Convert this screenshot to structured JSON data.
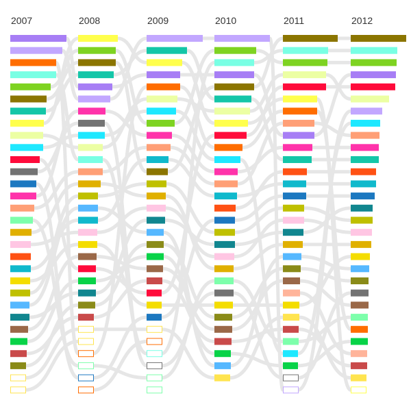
{
  "chart_data": {
    "type": "bar",
    "title": "",
    "xlabel": "",
    "ylabel": "",
    "grid": false,
    "legend": "none",
    "bump_connectors": true,
    "connector_color": "#e6e6e6",
    "years": [
      "2007",
      "2008",
      "2009",
      "2010",
      "2011",
      "2012"
    ],
    "series": [
      {
        "year": "2007",
        "bars": [
          {
            "value": 82,
            "color": "#a77ef5"
          },
          {
            "value": 76,
            "color": "#c2a7ff"
          },
          {
            "value": 67,
            "color": "#ff6d00"
          },
          {
            "value": 67,
            "color": "#79ffe4"
          },
          {
            "value": 59,
            "color": "#7ed321"
          },
          {
            "value": 53,
            "color": "#8b7500"
          },
          {
            "value": 52,
            "color": "#14c6a8"
          },
          {
            "value": 49,
            "color": "#ffff4c"
          },
          {
            "value": 48,
            "color": "#ecffa3"
          },
          {
            "value": 48,
            "color": "#1ee8ff"
          },
          {
            "value": 43,
            "color": "#ff0b3b"
          },
          {
            "value": 40,
            "color": "#737373"
          },
          {
            "value": 38,
            "color": "#1c78c0"
          },
          {
            "value": 38,
            "color": "#ff33aa"
          },
          {
            "value": 35,
            "color": "#ff9f76"
          },
          {
            "value": 33,
            "color": "#7dffab"
          },
          {
            "value": 31,
            "color": "#e0b000"
          },
          {
            "value": 30,
            "color": "#ffc6e3"
          },
          {
            "value": 30,
            "color": "#ff5114"
          },
          {
            "value": 30,
            "color": "#10b9cc"
          },
          {
            "value": 29,
            "color": "#f4dd00"
          },
          {
            "value": 29,
            "color": "#bfc000"
          },
          {
            "value": 28,
            "color": "#56b8ff"
          },
          {
            "value": 28,
            "color": "#11868f"
          },
          {
            "value": 26,
            "color": "#9a6848"
          },
          {
            "value": 25,
            "color": "#08d348"
          },
          {
            "value": 24,
            "color": "#c94a4a"
          },
          {
            "value": 23,
            "color": "#8a8b18"
          },
          {
            "value": 0,
            "color": "#ffe44f"
          },
          {
            "value": 0,
            "color": "#ffe44f"
          }
        ]
      },
      {
        "year": "2008",
        "bars": [
          {
            "value": 58,
            "color": "#ffff4c"
          },
          {
            "value": 55,
            "color": "#7ed321"
          },
          {
            "value": 55,
            "color": "#8b7500"
          },
          {
            "value": 52,
            "color": "#14c6a8"
          },
          {
            "value": 50,
            "color": "#a77ef5"
          },
          {
            "value": 47,
            "color": "#c2a7ff"
          },
          {
            "value": 40,
            "color": "#ff33aa"
          },
          {
            "value": 39,
            "color": "#737373"
          },
          {
            "value": 39,
            "color": "#1ee8ff"
          },
          {
            "value": 36,
            "color": "#ecffa3"
          },
          {
            "value": 36,
            "color": "#79ffe4"
          },
          {
            "value": 36,
            "color": "#ff9f76"
          },
          {
            "value": 33,
            "color": "#e0b000"
          },
          {
            "value": 29,
            "color": "#bfc000"
          },
          {
            "value": 29,
            "color": "#56b8ff"
          },
          {
            "value": 29,
            "color": "#10b9cc"
          },
          {
            "value": 28,
            "color": "#ffc6e3"
          },
          {
            "value": 28,
            "color": "#f4dd00"
          },
          {
            "value": 27,
            "color": "#9a6848"
          },
          {
            "value": 26,
            "color": "#ff0b3b"
          },
          {
            "value": 26,
            "color": "#08d348"
          },
          {
            "value": 26,
            "color": "#11868f"
          },
          {
            "value": 25,
            "color": "#8a8b18"
          },
          {
            "value": 23,
            "color": "#c94a4a"
          },
          {
            "value": 0,
            "color": "#ffe44f"
          },
          {
            "value": 0,
            "color": "#ffe44f"
          },
          {
            "value": 0,
            "color": "#ff6d00"
          },
          {
            "value": 0,
            "color": "#7dffab"
          },
          {
            "value": 0,
            "color": "#1c78c0"
          },
          {
            "value": 0,
            "color": "#ff6d00"
          }
        ]
      },
      {
        "year": "2009",
        "bars": [
          {
            "value": 96,
            "color": "#c2a7ff"
          },
          {
            "value": 59,
            "color": "#14c6a8"
          },
          {
            "value": 52,
            "color": "#ffff4c"
          },
          {
            "value": 49,
            "color": "#a77ef5"
          },
          {
            "value": 49,
            "color": "#ff6d00"
          },
          {
            "value": 45,
            "color": "#ecffa3"
          },
          {
            "value": 43,
            "color": "#1ee8ff"
          },
          {
            "value": 41,
            "color": "#7ed321"
          },
          {
            "value": 37,
            "color": "#ff33aa"
          },
          {
            "value": 35,
            "color": "#ff9f76"
          },
          {
            "value": 32,
            "color": "#10b9cc"
          },
          {
            "value": 31,
            "color": "#8b7500"
          },
          {
            "value": 29,
            "color": "#bfc000"
          },
          {
            "value": 28,
            "color": "#e0b000"
          },
          {
            "value": 28,
            "color": "#ffc6e3"
          },
          {
            "value": 27,
            "color": "#11868f"
          },
          {
            "value": 25,
            "color": "#56b8ff"
          },
          {
            "value": 25,
            "color": "#8a8b18"
          },
          {
            "value": 25,
            "color": "#08d348"
          },
          {
            "value": 24,
            "color": "#9a6848"
          },
          {
            "value": 23,
            "color": "#c94a4a"
          },
          {
            "value": 22,
            "color": "#ff0b3b"
          },
          {
            "value": 22,
            "color": "#f4dd00"
          },
          {
            "value": 22,
            "color": "#1c78c0"
          },
          {
            "value": 0,
            "color": "#ffe44f"
          },
          {
            "value": 0,
            "color": "#ff6d00"
          },
          {
            "value": 0,
            "color": "#79ffe4"
          },
          {
            "value": 0,
            "color": "#737373"
          },
          {
            "value": 0,
            "color": "#7dffab"
          },
          {
            "value": 0,
            "color": "#7dffab"
          }
        ]
      },
      {
        "year": "2010",
        "bars": [
          {
            "value": 81,
            "color": "#c2a7ff"
          },
          {
            "value": 61,
            "color": "#7ed321"
          },
          {
            "value": 58,
            "color": "#79ffe4"
          },
          {
            "value": 58,
            "color": "#a77ef5"
          },
          {
            "value": 58,
            "color": "#8b7500"
          },
          {
            "value": 54,
            "color": "#14c6a8"
          },
          {
            "value": 52,
            "color": "#ecffa3"
          },
          {
            "value": 49,
            "color": "#ffff4c"
          },
          {
            "value": 47,
            "color": "#ff0b3b"
          },
          {
            "value": 41,
            "color": "#ff6d00"
          },
          {
            "value": 38,
            "color": "#1ee8ff"
          },
          {
            "value": 34,
            "color": "#ff33aa"
          },
          {
            "value": 34,
            "color": "#ff9f76"
          },
          {
            "value": 33,
            "color": "#10b9cc"
          },
          {
            "value": 31,
            "color": "#ff5114"
          },
          {
            "value": 30,
            "color": "#1c78c0"
          },
          {
            "value": 30,
            "color": "#bfc000"
          },
          {
            "value": 30,
            "color": "#11868f"
          },
          {
            "value": 29,
            "color": "#ffc6e3"
          },
          {
            "value": 28,
            "color": "#e0b000"
          },
          {
            "value": 28,
            "color": "#7dffab"
          },
          {
            "value": 28,
            "color": "#737373"
          },
          {
            "value": 27,
            "color": "#f4dd00"
          },
          {
            "value": 26,
            "color": "#8a8b18"
          },
          {
            "value": 26,
            "color": "#9a6848"
          },
          {
            "value": 25,
            "color": "#c94a4a"
          },
          {
            "value": 24,
            "color": "#08d348"
          },
          {
            "value": 24,
            "color": "#56b8ff"
          },
          {
            "value": 23,
            "color": "#ffe44f"
          }
        ]
      },
      {
        "year": "2011",
        "bars": [
          {
            "value": 80,
            "color": "#8b7500"
          },
          {
            "value": 66,
            "color": "#79ffe4"
          },
          {
            "value": 65,
            "color": "#7ed321"
          },
          {
            "value": 63,
            "color": "#ecffa3"
          },
          {
            "value": 63,
            "color": "#ff0b3b"
          },
          {
            "value": 50,
            "color": "#ffff4c"
          },
          {
            "value": 50,
            "color": "#ff6d00"
          },
          {
            "value": 46,
            "color": "#ff9f76"
          },
          {
            "value": 46,
            "color": "#a77ef5"
          },
          {
            "value": 43,
            "color": "#ff33aa"
          },
          {
            "value": 42,
            "color": "#14c6a8"
          },
          {
            "value": 35,
            "color": "#ff5114"
          },
          {
            "value": 34,
            "color": "#10b9cc"
          },
          {
            "value": 34,
            "color": "#1c78c0"
          },
          {
            "value": 31,
            "color": "#bfc000"
          },
          {
            "value": 31,
            "color": "#ffc6e3"
          },
          {
            "value": 30,
            "color": "#11868f"
          },
          {
            "value": 29,
            "color": "#e0b000"
          },
          {
            "value": 27,
            "color": "#56b8ff"
          },
          {
            "value": 26,
            "color": "#8a8b18"
          },
          {
            "value": 25,
            "color": "#9a6848"
          },
          {
            "value": 25,
            "color": "#ffb49a"
          },
          {
            "value": 24,
            "color": "#f4dd00"
          },
          {
            "value": 24,
            "color": "#ffe44f"
          },
          {
            "value": 23,
            "color": "#c94a4a"
          },
          {
            "value": 23,
            "color": "#7dffab"
          },
          {
            "value": 22,
            "color": "#1ee8ff"
          },
          {
            "value": 22,
            "color": "#08d348"
          },
          {
            "value": 0,
            "color": "#737373"
          },
          {
            "value": 0,
            "color": "#c2a7ff"
          }
        ]
      },
      {
        "year": "2012",
        "bars": [
          {
            "value": 81,
            "color": "#8b7500"
          },
          {
            "value": 68,
            "color": "#79ffe4"
          },
          {
            "value": 67,
            "color": "#7ed321"
          },
          {
            "value": 66,
            "color": "#a77ef5"
          },
          {
            "value": 65,
            "color": "#ff0b3b"
          },
          {
            "value": 56,
            "color": "#ecffa3"
          },
          {
            "value": 46,
            "color": "#c2a7ff"
          },
          {
            "value": 43,
            "color": "#1ee8ff"
          },
          {
            "value": 42,
            "color": "#ff9f76"
          },
          {
            "value": 41,
            "color": "#ff33aa"
          },
          {
            "value": 41,
            "color": "#14c6a8"
          },
          {
            "value": 37,
            "color": "#ff5114"
          },
          {
            "value": 37,
            "color": "#10b9cc"
          },
          {
            "value": 35,
            "color": "#1c78c0"
          },
          {
            "value": 32,
            "color": "#11868f"
          },
          {
            "value": 32,
            "color": "#bfc000"
          },
          {
            "value": 31,
            "color": "#ffc6e3"
          },
          {
            "value": 30,
            "color": "#e0b000"
          },
          {
            "value": 28,
            "color": "#f4dd00"
          },
          {
            "value": 27,
            "color": "#56b8ff"
          },
          {
            "value": 26,
            "color": "#8a8b18"
          },
          {
            "value": 26,
            "color": "#737373"
          },
          {
            "value": 26,
            "color": "#9a6848"
          },
          {
            "value": 25,
            "color": "#7dffab"
          },
          {
            "value": 25,
            "color": "#ff6d00"
          },
          {
            "value": 25,
            "color": "#08d348"
          },
          {
            "value": 24,
            "color": "#ffb49a"
          },
          {
            "value": 24,
            "color": "#c94a4a"
          },
          {
            "value": 23,
            "color": "#ffe44f"
          },
          {
            "value": 0,
            "color": "#ffff4c"
          }
        ]
      }
    ]
  }
}
